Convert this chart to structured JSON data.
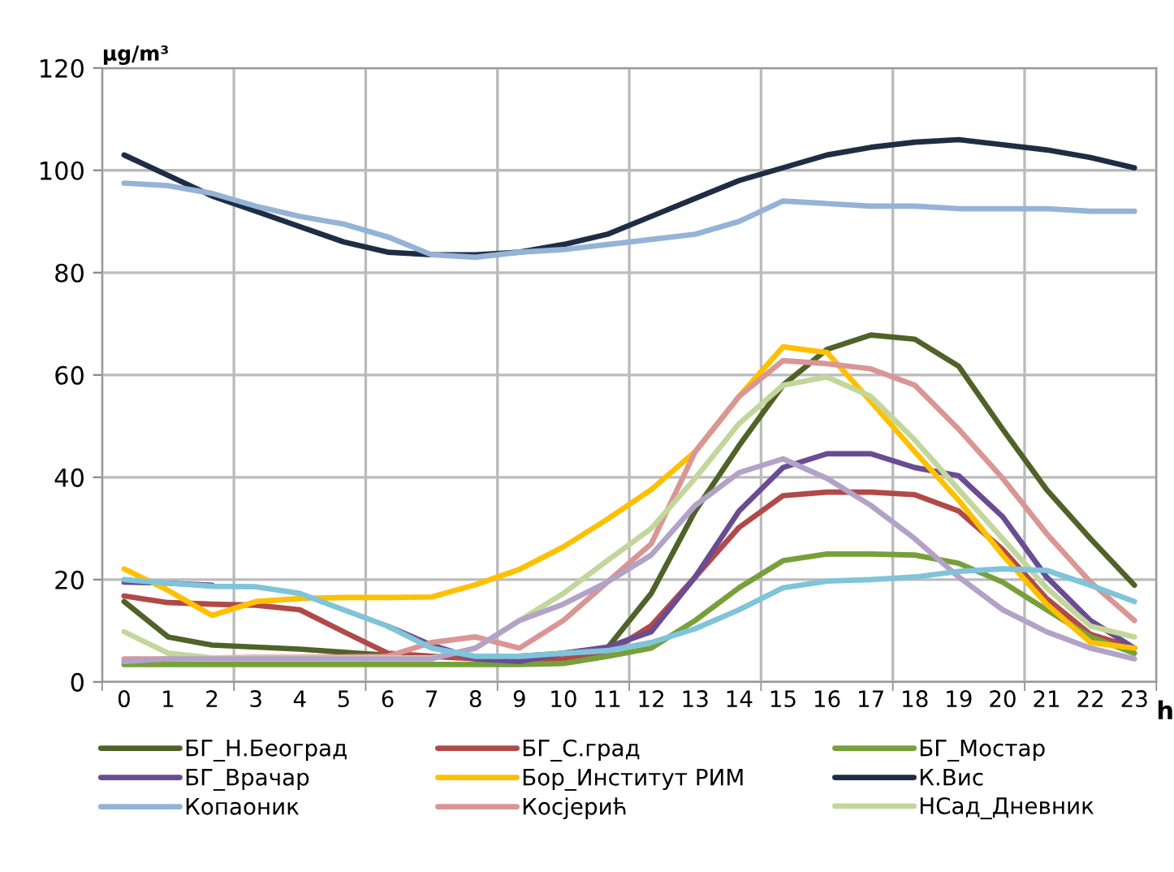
{
  "chart_data": {
    "type": "line",
    "ylabel": "µg/m³",
    "xlabel": "h",
    "categories": [
      "0",
      "1",
      "2",
      "3",
      "4",
      "5",
      "6",
      "7",
      "8",
      "9",
      "10",
      "11",
      "12",
      "13",
      "14",
      "15",
      "16",
      "17",
      "18",
      "19",
      "20",
      "21",
      "22",
      "23"
    ],
    "ylim": [
      0,
      120
    ],
    "yticks": [
      0,
      20,
      40,
      60,
      80,
      100,
      120
    ],
    "grid": true,
    "legend": "bottom",
    "line_style": "solid",
    "series": [
      {
        "name": "БГ_Н.Београд",
        "color": "#4f6228",
        "values": [
          15.7,
          8.8,
          7.2,
          6.8,
          6.4,
          5.8,
          5.2,
          5,
          4.8,
          5,
          5.6,
          6.6,
          17.3,
          33.4,
          46.2,
          58,
          65,
          67.8,
          67,
          61.7,
          49.4,
          37.6,
          28,
          18.9
        ]
      },
      {
        "name": "БГ_С.град",
        "color": "#b04a48",
        "values": [
          16.8,
          15.5,
          15.2,
          15,
          14.1,
          9.8,
          5.6,
          5,
          4.5,
          4.3,
          4.5,
          5.6,
          11,
          20.5,
          30.2,
          36.4,
          37.1,
          37.1,
          36.6,
          33.4,
          25.9,
          16.3,
          9.3,
          6.6
        ]
      },
      {
        "name": "БГ_Мостар",
        "color": "#77a03b",
        "values": [
          3.4,
          3.4,
          3.4,
          3.4,
          3.4,
          3.4,
          3.4,
          3.4,
          3.4,
          3.4,
          3.6,
          5,
          6.6,
          12,
          18.4,
          23.7,
          25,
          25,
          24.8,
          23.2,
          19.5,
          14.1,
          8.8,
          5.6
        ]
      },
      {
        "name": "БГ_Врачар",
        "color": "#6a4c93",
        "values": [
          19.5,
          19.3,
          18.9,
          null,
          null,
          null,
          10.9,
          7.2,
          4.5,
          4,
          5.6,
          6.8,
          9.8,
          20.5,
          33.4,
          41.9,
          44.6,
          44.6,
          41.9,
          40.3,
          32.3,
          20.5,
          12,
          6.6
        ]
      },
      {
        "name": "Бор_Институт РИМ",
        "color": "#ffc000",
        "values": [
          22.1,
          17.9,
          13,
          15.7,
          16.3,
          16.5,
          16.5,
          16.6,
          19,
          22,
          26.4,
          31.8,
          37.6,
          45,
          55.8,
          65.5,
          64.4,
          54.8,
          45,
          35.5,
          24.8,
          15.2,
          7.7,
          6.6
        ]
      },
      {
        "name": "К.Вис",
        "color": "#1f2d44",
        "values": [
          103,
          99,
          95,
          92,
          89,
          86,
          84,
          83.5,
          83.5,
          84,
          85.5,
          87.5,
          91,
          94.5,
          98,
          100.5,
          103,
          104.5,
          105.5,
          106,
          105,
          104,
          102.5,
          100.5
        ]
      },
      {
        "name": "Копаоник",
        "color": "#95b3d7",
        "values": [
          97.5,
          97,
          95.5,
          93,
          91,
          89.5,
          87,
          83.5,
          83,
          84,
          84.5,
          85.5,
          86.5,
          87.5,
          90,
          94,
          93.5,
          93,
          93,
          92.5,
          92.5,
          92.5,
          92,
          92
        ]
      },
      {
        "name": "Косјерић",
        "color": "#d99694",
        "values": [
          4.5,
          4.5,
          4.7,
          4.8,
          4.8,
          4.9,
          5,
          7.7,
          8.8,
          6.6,
          12,
          19.5,
          27,
          45,
          55.8,
          62.8,
          62.2,
          61.2,
          58,
          49.4,
          39.8,
          29,
          19.5,
          12
        ]
      },
      {
        "name": "НСад_Дневник",
        "color": "#c3d69b",
        "values": [
          9.8,
          5.6,
          4.7,
          4.7,
          4.7,
          4.7,
          4.7,
          4.7,
          6.6,
          12,
          17.3,
          23.7,
          30,
          39.8,
          50.5,
          58,
          59.6,
          55.8,
          47.3,
          37.6,
          28,
          18.4,
          10.9,
          8.8
        ]
      },
      {
        "color": "#b3a2c7",
        "values": [
          4,
          4.5,
          4.5,
          4.5,
          4.5,
          4.5,
          4.5,
          4.5,
          6.6,
          12,
          15.2,
          19.5,
          24.8,
          34.5,
          40.9,
          43.6,
          39.8,
          34.5,
          28,
          20.5,
          14.1,
          9.8,
          6.6,
          4.5
        ]
      },
      {
        "color": "#7fc4d9",
        "values": [
          20,
          19.3,
          18.7,
          18.6,
          17.3,
          14.1,
          10.9,
          6.6,
          5,
          5,
          5.6,
          6.1,
          7.7,
          10.4,
          14.1,
          18.4,
          19.7,
          20,
          20.5,
          21.6,
          22.1,
          21.8,
          18.9,
          15.7
        ]
      }
    ]
  }
}
